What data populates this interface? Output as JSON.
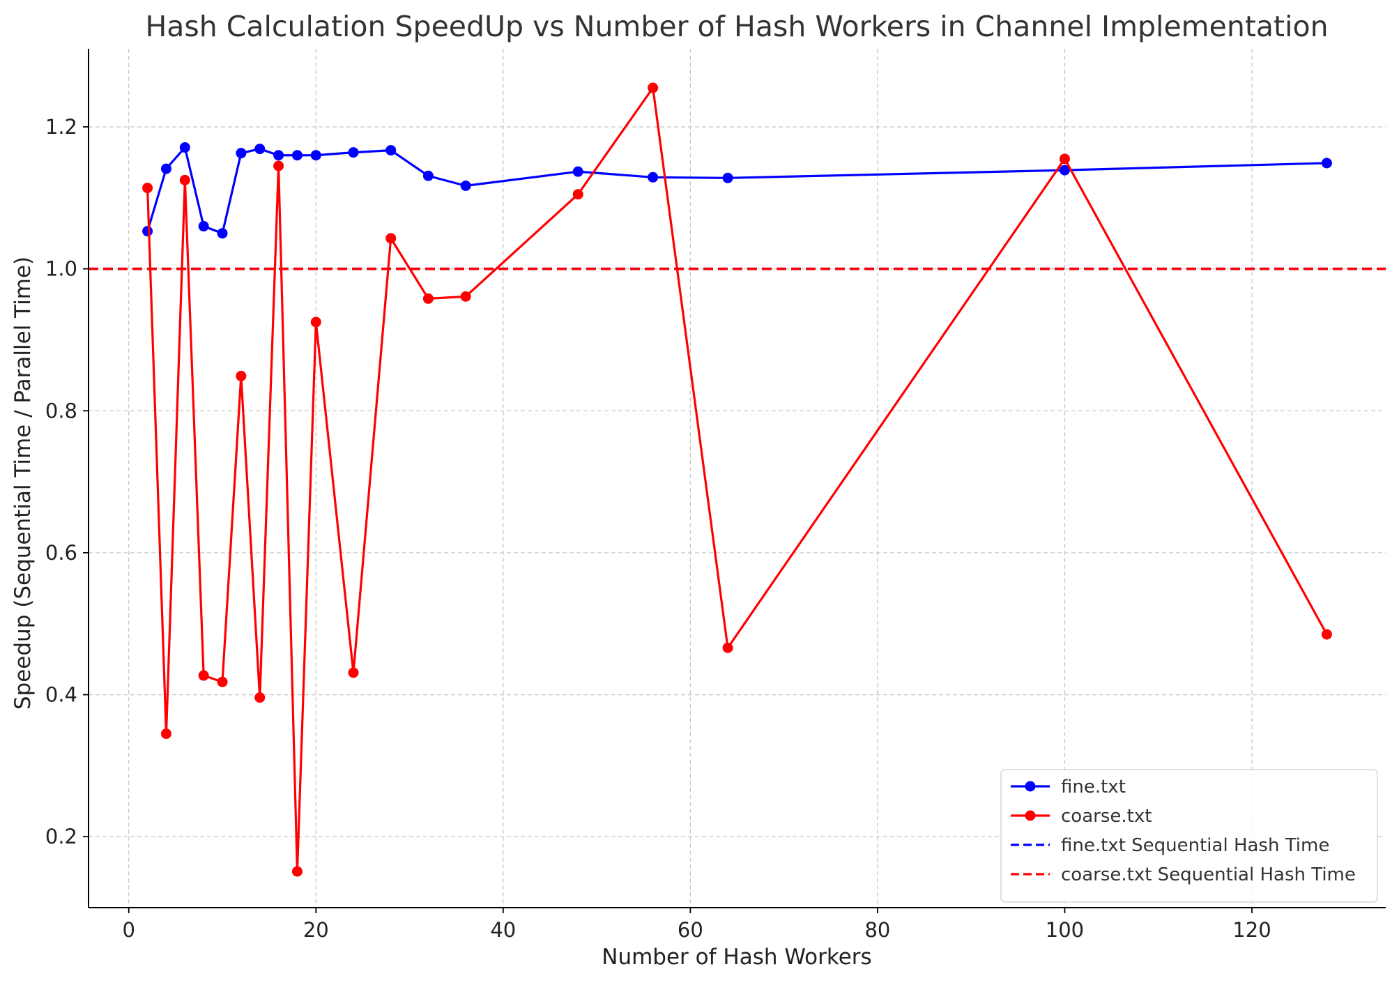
{
  "chart_data": {
    "type": "line",
    "title": "Hash Calculation SpeedUp vs Number of Hash Workers in Channel Implementation",
    "xlabel": "Number of Hash Workers",
    "ylabel": "Speedup (Sequential Time / Parallel Time)",
    "xlim": [
      -4.3,
      134.3
    ],
    "ylim": [
      0.1,
      1.31
    ],
    "xticks": [
      0,
      20,
      40,
      60,
      80,
      100,
      120
    ],
    "yticks": [
      0.2,
      0.4,
      0.6,
      0.8,
      1.0,
      1.2
    ],
    "xtick_labels": [
      "0",
      "20",
      "40",
      "60",
      "80",
      "100",
      "120"
    ],
    "ytick_labels": [
      "0.2",
      "0.4",
      "0.6",
      "0.8",
      "1.0",
      "1.2"
    ],
    "grid": true,
    "legend_position": "lower-right",
    "series": [
      {
        "name": "fine.txt",
        "color": "#0000ff",
        "style": "solid",
        "marker": "circle",
        "x": [
          2,
          4,
          6,
          8,
          10,
          12,
          14,
          16,
          18,
          20,
          24,
          28,
          32,
          36,
          48,
          56,
          64,
          100,
          128
        ],
        "y": [
          1.053,
          1.141,
          1.171,
          1.06,
          1.05,
          1.163,
          1.169,
          1.16,
          1.16,
          1.16,
          1.164,
          1.167,
          1.131,
          1.117,
          1.137,
          1.129,
          1.128,
          1.139,
          1.149
        ]
      },
      {
        "name": "coarse.txt",
        "color": "#ff0000",
        "style": "solid",
        "marker": "circle",
        "x": [
          2,
          4,
          6,
          8,
          10,
          12,
          14,
          16,
          18,
          20,
          24,
          28,
          32,
          36,
          48,
          56,
          64,
          100,
          128
        ],
        "y": [
          1.114,
          0.345,
          1.125,
          0.427,
          0.418,
          0.849,
          0.396,
          1.145,
          0.151,
          0.925,
          0.431,
          1.043,
          0.958,
          0.961,
          1.105,
          1.255,
          0.466,
          1.155,
          0.485
        ]
      },
      {
        "name": "fine.txt Sequential Hash Time",
        "color": "#0000ff",
        "style": "dashed",
        "y_const": 1.0
      },
      {
        "name": "coarse.txt Sequential Hash Time",
        "color": "#ff0000",
        "style": "dashed",
        "y_const": 1.0
      }
    ]
  }
}
